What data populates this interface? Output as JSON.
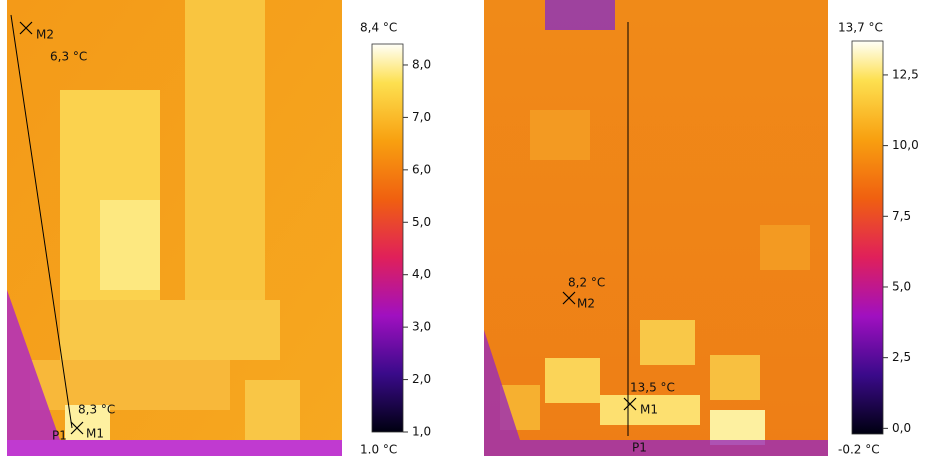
{
  "panels": [
    {
      "markers": [
        {
          "name": "M2",
          "temperature": "6,3 °C"
        },
        {
          "name": "M1",
          "temperature": "8,3 °C"
        }
      ],
      "profile_label": "P1",
      "scale": {
        "max_label": "8,4 °C",
        "min_label": "1.0 °C",
        "range": [
          1.0,
          8.4
        ],
        "ticks": [
          {
            "value": 8,
            "label": "8,0"
          },
          {
            "value": 7,
            "label": "7,0"
          },
          {
            "value": 6,
            "label": "6,0"
          },
          {
            "value": 5,
            "label": "5,0"
          },
          {
            "value": 4,
            "label": "4,0"
          },
          {
            "value": 3,
            "label": "3,0"
          },
          {
            "value": 2,
            "label": "2,0"
          },
          {
            "value": 1,
            "label": "1,0"
          }
        ]
      }
    },
    {
      "markers": [
        {
          "name": "M2",
          "temperature": "8,2 °C"
        },
        {
          "name": "M1",
          "temperature": "13,5 °C"
        }
      ],
      "profile_label": "P1",
      "scale": {
        "max_label": "13,7 °C",
        "min_label": "-0.2 °C",
        "range": [
          -0.2,
          13.7
        ],
        "ticks": [
          {
            "value": 12.5,
            "label": "12,5"
          },
          {
            "value": 10,
            "label": "10,0"
          },
          {
            "value": 7.5,
            "label": "7,5"
          },
          {
            "value": 5,
            "label": "5,0"
          },
          {
            "value": 2.5,
            "label": "2,5"
          },
          {
            "value": 0,
            "label": "0,0"
          }
        ]
      }
    }
  ]
}
